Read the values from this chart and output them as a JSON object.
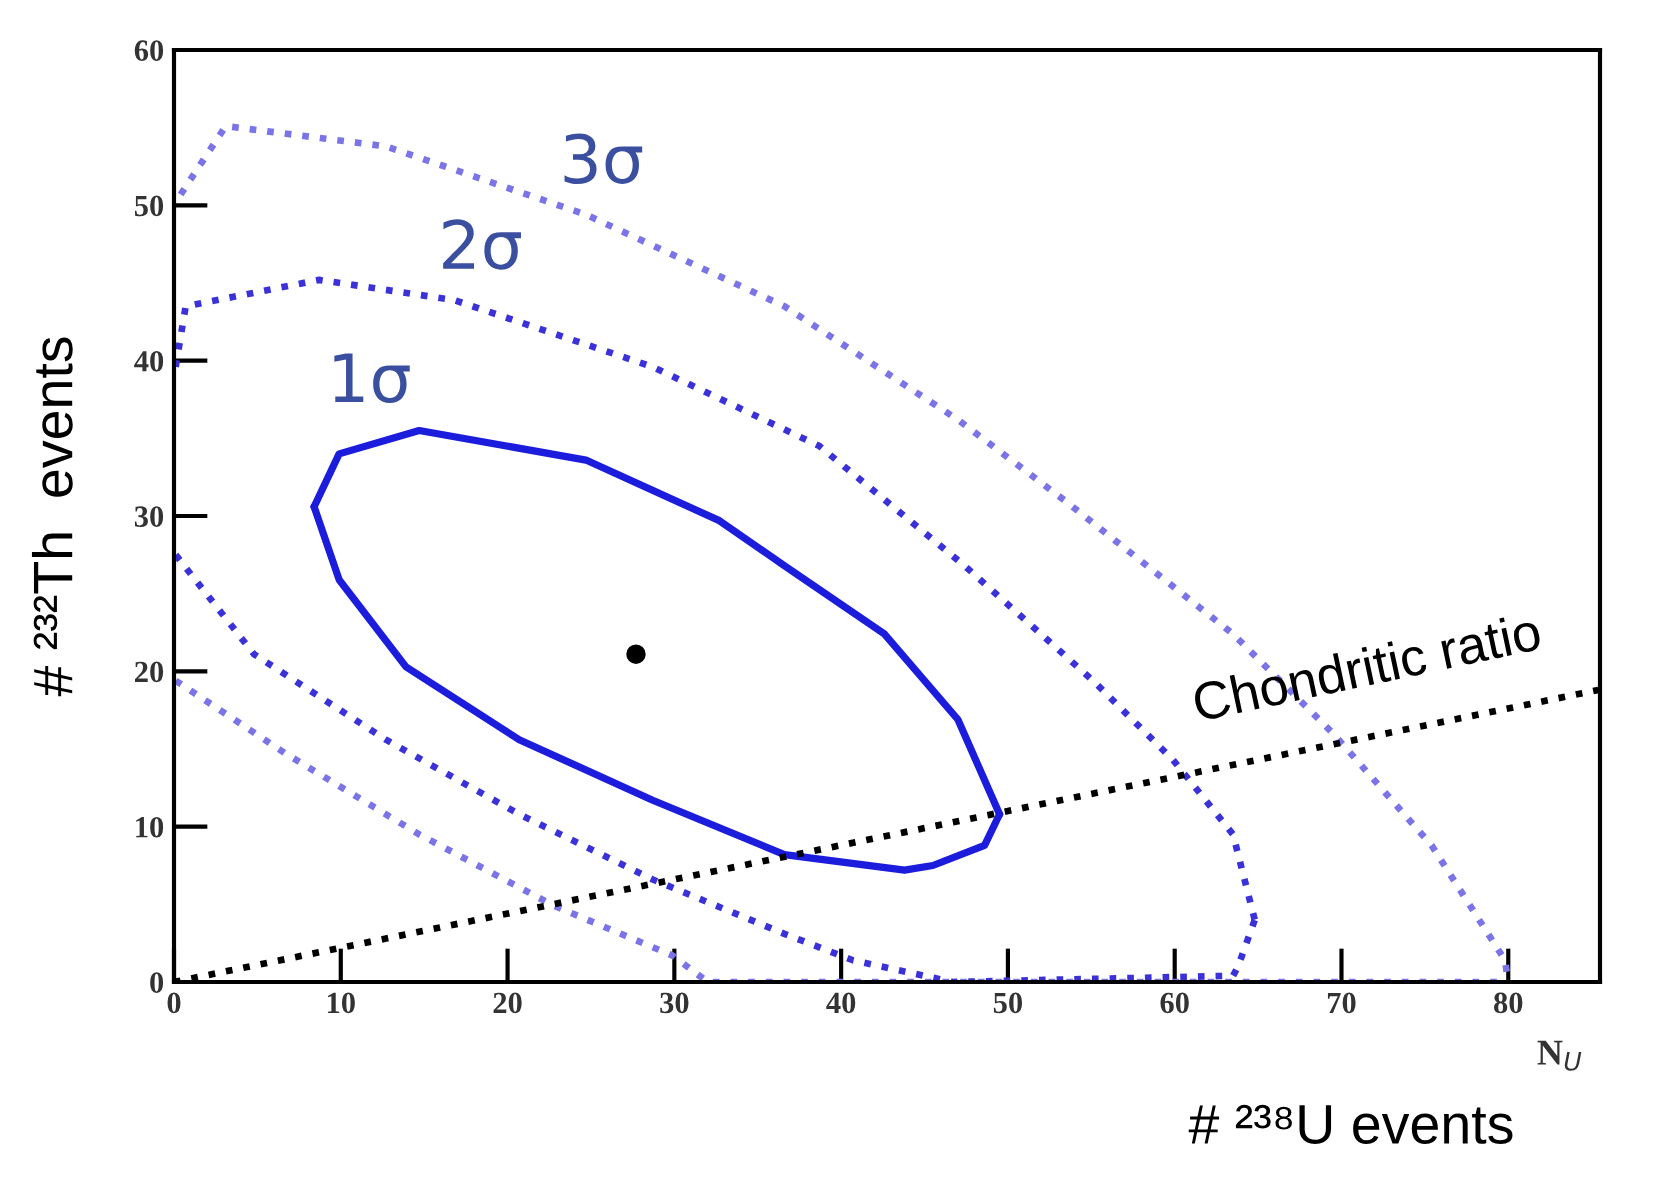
{
  "chart_data": {
    "type": "line",
    "xlabel": "# ²³⁸U events",
    "ylabel": "# ²³²Th  events",
    "xlim": [
      0,
      85.5
    ],
    "ylim": [
      0,
      60
    ],
    "xticks": [
      0,
      10,
      20,
      30,
      40,
      50,
      60,
      70,
      80
    ],
    "yticks": [
      0,
      10,
      20,
      30,
      40,
      50,
      60
    ],
    "grid": false,
    "legend": false,
    "series": [
      {
        "color": "#7a74e6",
        "line_style": "dotted",
        "x": [
          0.4,
          3.1,
          12.7,
          24.7,
          36.6,
          47,
          53.4,
          63.5,
          69.5,
          75.4,
          79.8,
          80
        ],
        "values": [
          50.7,
          55.1,
          53.8,
          49.4,
          43.5,
          36.2,
          31,
          22.4,
          16,
          8.8,
          1.4,
          0
        ]
      },
      {
        "color": "#7a74e6",
        "line_style": "dotted",
        "x": [
          0.1,
          6.7,
          14.7,
          22.8,
          29.9,
          32,
          80
        ],
        "values": [
          19.4,
          14.7,
          9.5,
          4.9,
          1.7,
          0,
          0
        ]
      },
      {
        "color": "#3a32d8",
        "line_style": "dotted",
        "x": [
          0.1,
          0.7,
          8.7,
          16.8,
          28.7,
          38.7,
          47.4,
          55.1,
          59.9,
          63.5,
          64.8
        ],
        "values": [
          39.6,
          43.5,
          45.2,
          43.9,
          39.6,
          34.5,
          26.8,
          19.4,
          14.3,
          9.5,
          4
        ]
      },
      {
        "color": "#3a32d8",
        "line_style": "dotted",
        "x": [
          0.1,
          4.8,
          12.7,
          20.7,
          28.7,
          36.6,
          40.7,
          46.7,
          63.5,
          63.8,
          64.8
        ],
        "values": [
          27.5,
          21.1,
          15.6,
          10.8,
          6.6,
          3.1,
          1.4,
          0,
          0.4,
          1,
          4
        ]
      },
      {
        "color": "#1c1cdc",
        "line_style": "solid",
        "x": [
          8.4,
          9.9,
          14.7,
          24.7,
          32.7,
          36.6,
          42.6,
          47,
          49.5
        ],
        "values": [
          30.6,
          34,
          35.5,
          33.6,
          29.7,
          26.8,
          22.4,
          16.9,
          10.8
        ]
      },
      {
        "color": "#1c1cdc",
        "line_style": "solid",
        "x": [
          8.4,
          9.9,
          13.9,
          20.7,
          28.7,
          36.6,
          43.8,
          45.5,
          48.6,
          49.5
        ],
        "values": [
          30.6,
          25.9,
          20.3,
          15.6,
          11.7,
          8.2,
          7.2,
          7.5,
          8.8,
          10.8
        ]
      },
      {
        "color": "#000000",
        "line_style": "dotted",
        "x": [
          0,
          85.4
        ],
        "values": [
          0,
          18.8
        ]
      },
      {
        "type": "scatter",
        "color": "#000000",
        "marker": "circle",
        "x": [
          27.7
        ],
        "values": [
          21.1
        ]
      }
    ],
    "annotations": [
      "3σ",
      "2σ",
      "1σ",
      "Chondritic ratio",
      "N$_{U}$"
    ]
  }
}
